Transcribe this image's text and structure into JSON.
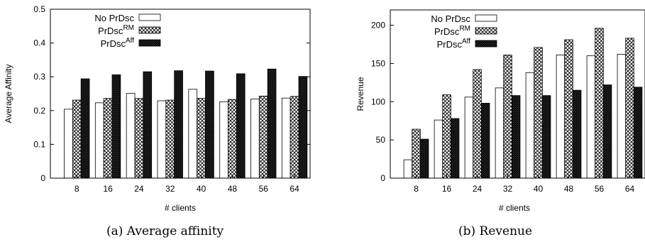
{
  "chart_data": [
    {
      "type": "bar",
      "xlabel": "# clients",
      "ylabel": "Average Affinity",
      "caption": "(a) Average affinity",
      "ylim": [
        0,
        0.5
      ],
      "yticks": [
        "0",
        "0.1",
        "0.2",
        "0.3",
        "0.4",
        "0.5"
      ],
      "yticks_values": [
        0,
        0.1,
        0.2,
        0.3,
        0.4,
        0.5
      ],
      "categories": [
        "8",
        "16",
        "24",
        "32",
        "40",
        "48",
        "56",
        "64"
      ],
      "grid": false,
      "legend_position": "top-left",
      "series": [
        {
          "legend_base": "No PrDsc",
          "legend_sup": "",
          "pattern": "white",
          "values": [
            0.204,
            0.223,
            0.251,
            0.229,
            0.263,
            0.226,
            0.234,
            0.237
          ]
        },
        {
          "legend_base": "PrDsc",
          "legend_sup": "RM",
          "pattern": "crosshatch",
          "values": [
            0.231,
            0.236,
            0.236,
            0.231,
            0.236,
            0.233,
            0.243,
            0.242
          ]
        },
        {
          "legend_base": "PrDsc",
          "legend_sup": "Aff",
          "pattern": "dense",
          "values": [
            0.294,
            0.306,
            0.315,
            0.318,
            0.317,
            0.309,
            0.323,
            0.301
          ]
        }
      ]
    },
    {
      "type": "bar",
      "xlabel": "# clients",
      "ylabel": "Revenue",
      "caption": "(b) Revenue",
      "ylim": [
        0,
        220
      ],
      "yticks": [
        "0",
        "50",
        "100",
        "150",
        "200"
      ],
      "yticks_values": [
        0,
        50,
        100,
        150,
        200
      ],
      "categories": [
        "8",
        "16",
        "24",
        "32",
        "40",
        "48",
        "56",
        "64"
      ],
      "grid": false,
      "legend_position": "top-left",
      "series": [
        {
          "legend_base": "No PrDsc",
          "legend_sup": "",
          "pattern": "white",
          "values": [
            24,
            76,
            106,
            118,
            138,
            161,
            160,
            162
          ]
        },
        {
          "legend_base": "PrDsc",
          "legend_sup": "RM",
          "pattern": "crosshatch",
          "values": [
            64,
            109,
            142,
            161,
            171,
            181,
            196,
            183
          ]
        },
        {
          "legend_base": "PrDsc",
          "legend_sup": "Aff",
          "pattern": "dense",
          "values": [
            51,
            78,
            98,
            108,
            108,
            115,
            122,
            119
          ]
        }
      ]
    }
  ]
}
